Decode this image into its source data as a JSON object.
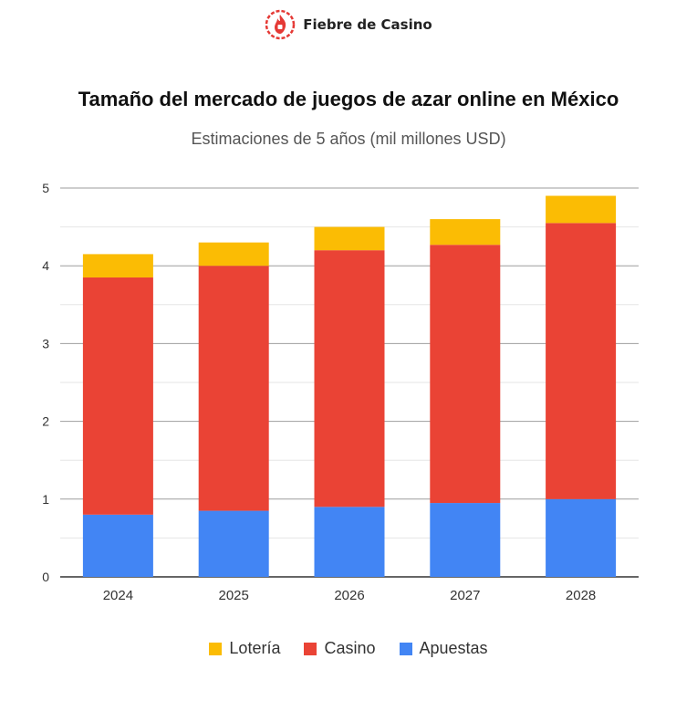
{
  "brand": {
    "name": "Fiebre de Casino",
    "logo_icon": "flame-dice-icon",
    "logo_color": "#e53935"
  },
  "chart_data": {
    "type": "bar",
    "stacked": true,
    "title": "Tamaño del mercado de juegos de azar online en México",
    "subtitle": "Estimaciones de 5 años (mil millones USD)",
    "xlabel": "",
    "ylabel": "",
    "categories": [
      "2024",
      "2025",
      "2026",
      "2027",
      "2028"
    ],
    "ylim": [
      0,
      5
    ],
    "yticks": [
      "0",
      "1",
      "2",
      "3",
      "4",
      "5"
    ],
    "grid": true,
    "legend_position": "bottom",
    "series": [
      {
        "name": "Apuestas",
        "color": "#4285f4",
        "values": [
          0.8,
          0.85,
          0.9,
          0.95,
          1.0
        ]
      },
      {
        "name": "Casino",
        "color": "#ea4335",
        "values": [
          3.05,
          3.15,
          3.3,
          3.32,
          3.55
        ]
      },
      {
        "name": "Lotería",
        "color": "#fbbc04",
        "values": [
          0.3,
          0.3,
          0.3,
          0.33,
          0.35
        ]
      }
    ],
    "legend_order": [
      "Lotería",
      "Casino",
      "Apuestas"
    ]
  }
}
